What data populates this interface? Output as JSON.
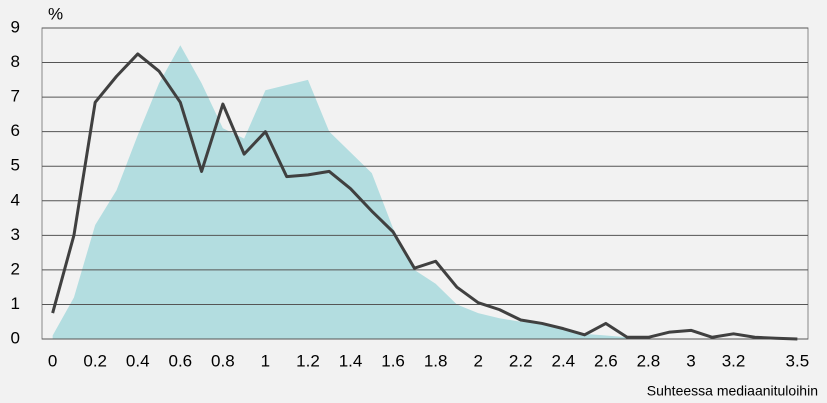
{
  "chart_data": {
    "type": "area-line",
    "y_label": "%",
    "x_label": "Suhteessa mediaanituloihin",
    "x": [
      0,
      0.1,
      0.2,
      0.3,
      0.4,
      0.5,
      0.6,
      0.7,
      0.8,
      0.9,
      1,
      1.1,
      1.2,
      1.3,
      1.4,
      1.5,
      1.6,
      1.7,
      1.8,
      1.9,
      2,
      2.1,
      2.2,
      2.3,
      2.4,
      2.5,
      2.6,
      2.7,
      2.8,
      2.9,
      3,
      3.1,
      3.2,
      3.3,
      3.4,
      3.5
    ],
    "series": [
      {
        "kind": "area",
        "color": "#b3dde0",
        "values": [
          0.1,
          1.2,
          3.3,
          4.3,
          5.9,
          7.4,
          8.5,
          7.4,
          6.1,
          5.8,
          7.2,
          7.35,
          7.5,
          6.0,
          5.4,
          4.8,
          3.2,
          2.0,
          1.6,
          1.0,
          0.75,
          0.6,
          0.5,
          0.45,
          0.3,
          0.15,
          0.1,
          0.05,
          0,
          0,
          0,
          0,
          0,
          0,
          0,
          0
        ]
      },
      {
        "kind": "line",
        "color": "#404040",
        "values": [
          0.75,
          3.0,
          6.85,
          7.6,
          8.25,
          7.75,
          6.85,
          4.85,
          6.8,
          5.35,
          6.0,
          4.7,
          4.75,
          4.85,
          4.35,
          3.7,
          3.1,
          2.05,
          2.25,
          1.5,
          1.05,
          0.85,
          0.55,
          0.45,
          0.3,
          0.12,
          0.45,
          0.05,
          0.05,
          0.2,
          0.25,
          0.05,
          0.15,
          0.05,
          0.02,
          0
        ]
      }
    ],
    "xlim": [
      -0.05,
      3.55
    ],
    "xticks": [
      0,
      0.2,
      0.4,
      0.6,
      0.8,
      1,
      1.2,
      1.4,
      1.6,
      1.8,
      2,
      2.2,
      2.4,
      2.6,
      2.8,
      3,
      3.2,
      3.5
    ],
    "ylim": [
      0,
      9
    ],
    "yticks": [
      0,
      1,
      2,
      3,
      4,
      5,
      6,
      7,
      8,
      9
    ],
    "grid": true
  }
}
